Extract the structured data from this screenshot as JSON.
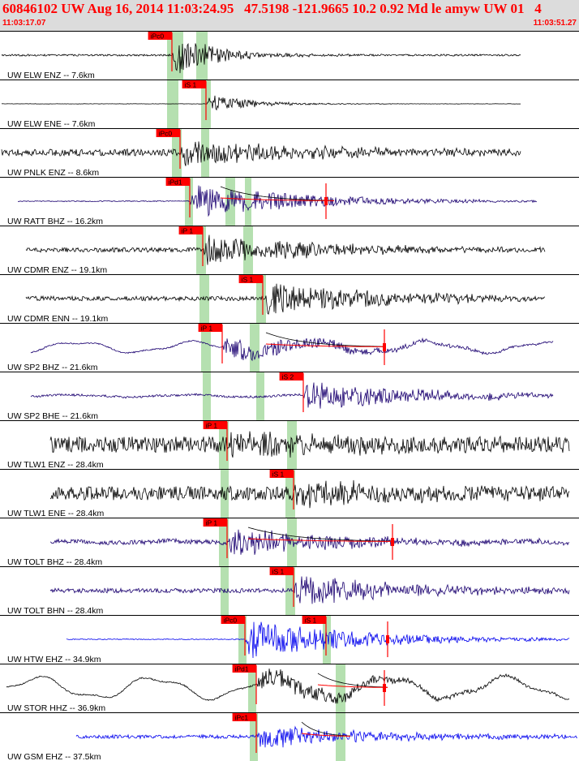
{
  "header": {
    "title": "60846102 UW Aug 16, 2014 11:03:24.95   47.5198 -121.9665 10.2 0.92 Md le amyw UW 01   4",
    "start_time": "11:03:17.07",
    "end_time": "11:03:51.27"
  },
  "colors": {
    "header_bg": "#dcdcdc",
    "header_text": "#ff0000",
    "pick_label_bg": "#ff0000",
    "pick_line": "#ff0000",
    "window_band": "#b5e0b0",
    "decay_curve": "#000000",
    "fit_curve": "#ff0000"
  },
  "chart_data": {
    "type": "line",
    "time_range": [
      "11:03:17.07",
      "11:03:51.27"
    ],
    "traces": [
      {
        "label": "UW ELW ENZ -- 7.6km",
        "color": "#000000",
        "signal": {
          "start_s": 0,
          "end_s": 32.0,
          "noise": 0.04,
          "arrival_s": 10.5,
          "event_amp": 0.95,
          "coda": "short",
          "wander": 0
        },
        "picks": [
          {
            "label": "iPc0",
            "time_s": 10.5,
            "band": [
              10.2,
              11.2
            ]
          }
        ],
        "extra_bands": [
          [
            12.0,
            12.7
          ]
        ]
      },
      {
        "label": "UW ELW ENE -- 7.6km",
        "color": "#000000",
        "signal": {
          "start_s": 0,
          "end_s": 32.0,
          "noise": 0.008,
          "arrival_s": 12.6,
          "event_amp": 0.45,
          "coda": "short",
          "wander": 0
        },
        "picks": [
          {
            "label": "iS 1",
            "time_s": 12.6,
            "band": [
              12.3,
              12.9
            ]
          }
        ],
        "extra_bands": [
          [
            10.2,
            10.9
          ]
        ]
      },
      {
        "label": "UW PNLK ENZ -- 8.6km",
        "color": "#000000",
        "signal": {
          "start_s": 0,
          "end_s": 32.0,
          "noise": 0.15,
          "arrival_s": 11.0,
          "event_amp": 0.6,
          "coda": "long",
          "wander": 0
        },
        "picks": [
          {
            "label": "iPc0",
            "time_s": 11.0,
            "band": [
              10.5,
              11.1
            ]
          }
        ],
        "extra_bands": [
          [
            12.3,
            12.8
          ]
        ]
      },
      {
        "label": "UW RATT BHZ -- 16.2km",
        "color": "#1a0070",
        "signal": {
          "start_s": 1.0,
          "end_s": 33.0,
          "noise": 0.02,
          "arrival_s": 11.6,
          "event_amp": 0.8,
          "coda": "long",
          "wander": 0
        },
        "picks": [
          {
            "label": "iPd1",
            "time_s": 11.6,
            "band": [
              11.3,
              11.8
            ]
          },
          {
            "label": "",
            "time_s": 20.0,
            "band": null
          }
        ],
        "extra_bands": [
          [
            13.8,
            14.4
          ],
          [
            15.0,
            15.4
          ]
        ],
        "curve": {
          "start_s": 13.5,
          "end_s": 20.5
        }
      },
      {
        "label": "UW CDMR ENZ -- 19.1km",
        "color": "#000000",
        "signal": {
          "start_s": 1.5,
          "end_s": 33.5,
          "noise": 0.1,
          "arrival_s": 12.4,
          "event_amp": 0.7,
          "coda": "long",
          "wander": 0
        },
        "picks": [
          {
            "label": "iP 1",
            "time_s": 12.4,
            "band": [
              12.0,
              12.6
            ]
          }
        ],
        "extra_bands": [
          [
            14.9,
            15.5
          ]
        ]
      },
      {
        "label": "UW CDMR ENN -- 19.1km",
        "color": "#000000",
        "signal": {
          "start_s": 1.5,
          "end_s": 33.5,
          "noise": 0.1,
          "arrival_s": 16.1,
          "event_amp": 0.8,
          "coda": "long",
          "wander": 0
        },
        "picks": [
          {
            "label": "iS 1",
            "time_s": 16.1,
            "band": [
              15.7,
              16.3
            ]
          }
        ],
        "extra_bands": [
          [
            12.2,
            12.8
          ]
        ]
      },
      {
        "label": "UW SP2 BHZ -- 21.6km",
        "color": "#1a0070",
        "signal": {
          "start_s": 1.8,
          "end_s": 34.0,
          "noise": 0.03,
          "arrival_s": 13.6,
          "event_amp": 0.5,
          "coda": "long",
          "wander": 0.28
        },
        "picks": [
          {
            "label": "iP 1",
            "time_s": 13.6,
            "band": [
              12.3,
              12.9
            ]
          },
          {
            "label": "",
            "time_s": 23.6,
            "band": null
          }
        ],
        "extra_bands": [
          [
            15.3,
            15.9
          ]
        ],
        "curve": {
          "start_s": 16.3,
          "end_s": 23.5
        }
      },
      {
        "label": "UW SP2 BHE -- 21.6km",
        "color": "#1a0070",
        "signal": {
          "start_s": 1.8,
          "end_s": 34.0,
          "noise": 0.05,
          "arrival_s": 18.6,
          "event_amp": 0.7,
          "coda": "long",
          "wander": 0.06
        },
        "picks": [
          {
            "label": "iS 2",
            "time_s": 18.6,
            "band": [
              15.7,
              16.2
            ]
          }
        ],
        "extra_bands": [
          [
            12.4,
            12.9
          ]
        ]
      },
      {
        "label": "UW TLW1 ENZ -- 28.4km",
        "color": "#000000",
        "signal": {
          "start_s": 3.0,
          "end_s": 35.0,
          "noise": 0.35,
          "arrival_s": 13.9,
          "event_amp": 0.5,
          "coda": "long",
          "wander": 0
        },
        "picks": [
          {
            "label": "iP 1",
            "time_s": 13.9,
            "band": [
              13.4,
              14.0
            ]
          }
        ],
        "extra_bands": [
          [
            17.6,
            18.2
          ]
        ]
      },
      {
        "label": "UW TLW1 ENE -- 28.4km",
        "color": "#000000",
        "signal": {
          "start_s": 3.0,
          "end_s": 35.0,
          "noise": 0.3,
          "arrival_s": 18.0,
          "event_amp": 0.5,
          "coda": "long",
          "wander": 0
        },
        "picks": [
          {
            "label": "iS 1",
            "time_s": 18.0,
            "band": [
              17.5,
              18.1
            ]
          }
        ],
        "extra_bands": [
          [
            13.5,
            14.0
          ]
        ]
      },
      {
        "label": "UW TOLT BHZ -- 28.4km",
        "color": "#1a0070",
        "signal": {
          "start_s": 3.0,
          "end_s": 35.0,
          "noise": 0.1,
          "arrival_s": 13.9,
          "event_amp": 0.6,
          "coda": "long",
          "wander": 0.05
        },
        "picks": [
          {
            "label": "iP 1",
            "time_s": 13.9,
            "band": [
              13.4,
              14.0
            ]
          },
          {
            "label": "",
            "time_s": 24.1,
            "band": null
          }
        ],
        "extra_bands": [
          [
            17.6,
            18.2
          ]
        ],
        "curve": {
          "start_s": 15.2,
          "end_s": 24.2
        }
      },
      {
        "label": "UW TOLT BHN -- 28.4km",
        "color": "#1a0070",
        "signal": {
          "start_s": 3.0,
          "end_s": 35.0,
          "noise": 0.1,
          "arrival_s": 18.0,
          "event_amp": 0.7,
          "coda": "long",
          "wander": 0
        },
        "picks": [
          {
            "label": "iS 1",
            "time_s": 18.0,
            "band": [
              17.5,
              18.1
            ]
          }
        ],
        "extra_bands": [
          [
            13.5,
            14.0
          ]
        ]
      },
      {
        "label": "UW HTW EHZ -- 34.9km",
        "color": "#0000ee",
        "signal": {
          "start_s": 4.0,
          "end_s": 35.0,
          "noise": 0.02,
          "arrival_s": 15.0,
          "event_amp": 0.9,
          "coda": "long",
          "wander": 0
        },
        "picks": [
          {
            "label": "iPc0",
            "time_s": 15.0,
            "band": [
              14.6,
              15.1
            ]
          },
          {
            "label": "iS 1",
            "time_s": 20.0,
            "band": [
              19.8,
              20.3
            ]
          },
          {
            "label": "",
            "time_s": 23.8,
            "band": null
          }
        ],
        "extra_bands": []
      },
      {
        "label": "UW STOR HHZ -- 36.9km",
        "color": "#000000",
        "signal": {
          "start_s": 0.3,
          "end_s": 35.0,
          "noise": 0.03,
          "arrival_s": 15.7,
          "event_amp": 0.5,
          "coda": "long",
          "wander": 0.55
        },
        "picks": [
          {
            "label": "iPd1",
            "time_s": 15.7,
            "band": [
              15.2,
              15.7
            ]
          },
          {
            "label": "",
            "time_s": 23.6,
            "band": null
          }
        ],
        "extra_bands": [
          [
            20.6,
            21.2
          ]
        ],
        "curve": {
          "start_s": 19.5,
          "end_s": 23.8
        }
      },
      {
        "label": "UW GSM EHZ -- 37.5km",
        "color": "#0000ee",
        "signal": {
          "start_s": 4.6,
          "end_s": 35.5,
          "noise": 0.08,
          "arrival_s": 15.7,
          "event_amp": 0.55,
          "coda": "long",
          "wander": 0
        },
        "picks": [
          {
            "label": "iPc1",
            "time_s": 15.7,
            "band": [
              15.3,
              15.8
            ]
          }
        ],
        "extra_bands": [
          [
            20.6,
            21.2
          ]
        ],
        "curve": {
          "start_s": 18.5,
          "end_s": 21.5
        }
      }
    ]
  }
}
